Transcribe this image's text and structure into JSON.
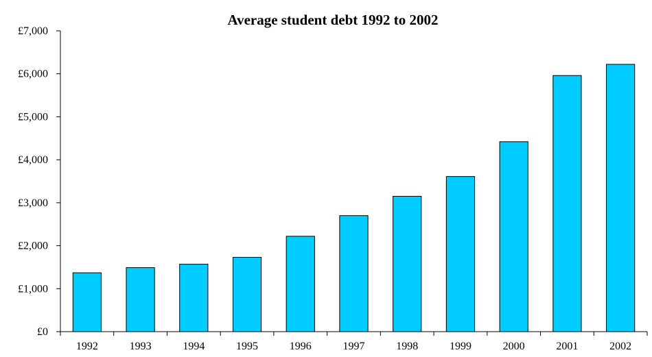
{
  "chart_data": {
    "type": "bar",
    "title": "Average student debt 1992 to 2002",
    "xlabel": "",
    "ylabel": "",
    "categories": [
      "1992",
      "1993",
      "1994",
      "1995",
      "1996",
      "1997",
      "1998",
      "1999",
      "2000",
      "2001",
      "2002"
    ],
    "values": [
      1370,
      1490,
      1570,
      1730,
      2220,
      2700,
      3150,
      3610,
      4420,
      5960,
      6220
    ],
    "ylim": [
      0,
      7000
    ],
    "yticks": [
      0,
      1000,
      2000,
      3000,
      4000,
      5000,
      6000,
      7000
    ],
    "ytick_labels": [
      "£0",
      "£1,000",
      "£2,000",
      "£3,000",
      "£4,000",
      "£5,000",
      "£6,000",
      "£7,000"
    ],
    "bar_color": "#00CCFF",
    "grid": false,
    "legend": "none"
  }
}
